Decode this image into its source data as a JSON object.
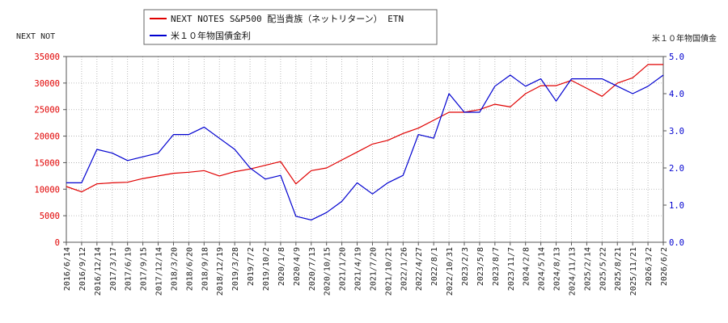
{
  "chart_data": {
    "type": "line",
    "left_axis_title": "NEXT NOT",
    "right_axis_title": "米１０年物国債金",
    "legend_position": "top-left",
    "grid": true,
    "y_left": {
      "min": 0,
      "max": 35000,
      "ticks": [
        0,
        5000,
        10000,
        15000,
        20000,
        25000,
        30000,
        35000
      ]
    },
    "y_right": {
      "min": 0.0,
      "max": 5.0,
      "ticks": [
        "0.0",
        "1.0",
        "2.0",
        "3.0",
        "4.0",
        "5.0"
      ]
    },
    "x_ticks": [
      "2016/6/14",
      "2016/9/12",
      "2016/12/14",
      "2017/3/17",
      "2017/6/19",
      "2017/9/15",
      "2017/12/14",
      "2018/3/20",
      "2018/6/20",
      "2018/9/18",
      "2018/12/19",
      "2019/3/28",
      "2019/7/2",
      "2019/10/2",
      "2020/1/8",
      "2020/4/9",
      "2020/7/13",
      "2020/10/15",
      "2021/1/20",
      "2021/4/19",
      "2021/7/20",
      "2021/10/21",
      "2022/1/26",
      "2022/4/27",
      "2022/8/1",
      "2022/10/31",
      "2023/2/3",
      "2023/5/8",
      "2023/8/7",
      "2023/11/7",
      "2024/2/8",
      "2024/5/14",
      "2024/8/13",
      "2024/11/13",
      "2025/2/14",
      "2025/5/22",
      "2025/8/21",
      "2025/11/21",
      "2026/3/2",
      "2026/6/2"
    ],
    "series": [
      {
        "name": "NEXT NOTES S&P500 配当貴族（ネットリターン） ETN",
        "axis": "left",
        "color": "#e00000",
        "values": [
          10500,
          9500,
          11000,
          11200,
          11300,
          12000,
          12500,
          13000,
          13200,
          13500,
          12500,
          13300,
          13800,
          14500,
          15200,
          11000,
          13500,
          14000,
          15500,
          17000,
          18500,
          19200,
          20500,
          21500,
          23000,
          24500,
          24500,
          25000,
          26000,
          25500,
          28000,
          29500,
          29500,
          30500,
          29000,
          27500,
          30000,
          31000,
          33500,
          33500
        ],
        "legend_label": "NEXT NOTES S&P500 配当貴族（ネットリターン） ETN"
      },
      {
        "name": "米１０年物国債金利",
        "axis": "right",
        "color": "#0000d0",
        "values": [
          1.6,
          1.6,
          2.5,
          2.4,
          2.2,
          2.3,
          2.4,
          2.9,
          2.9,
          3.1,
          2.8,
          2.5,
          2.0,
          1.7,
          1.8,
          0.7,
          0.6,
          0.8,
          1.1,
          1.6,
          1.3,
          1.6,
          1.8,
          2.9,
          2.8,
          4.0,
          3.5,
          3.5,
          4.2,
          4.5,
          4.2,
          4.4,
          3.8,
          4.4,
          4.4,
          4.4,
          4.2,
          4.0,
          4.2,
          4.5
        ],
        "legend_label": "米１０年物国債金利"
      }
    ]
  }
}
